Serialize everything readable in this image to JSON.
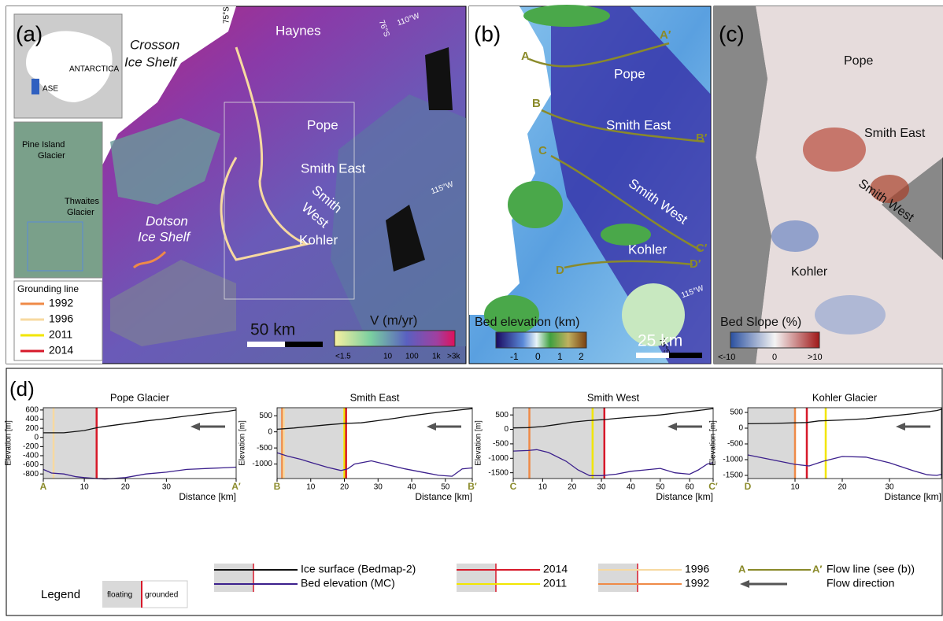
{
  "panel_a": {
    "label": "(a)",
    "texts": [
      "ANTARCTICA",
      "ASE",
      "Pine Island",
      "Glacier",
      "Thwaites",
      "Glacier",
      "Crosson",
      "Ice Shelf",
      "Haynes",
      "Pope",
      "Smith East",
      "Smith",
      "West",
      "Kohler",
      "Dotson",
      "Ice Shelf",
      "75°S",
      "76°S",
      "110°W",
      "115°W",
      "50 km",
      "V (m/yr)"
    ],
    "colorbar_ticks": [
      "<1.5",
      "10",
      "100",
      "1k",
      ">3k"
    ],
    "grounding_legend": {
      "title": "Grounding line",
      "items": [
        {
          "name": "1992",
          "color": "#ef8a47"
        },
        {
          "name": "1996",
          "color": "#f7d9a0"
        },
        {
          "name": "2011",
          "color": "#f2e600"
        },
        {
          "name": "2014",
          "color": "#d7192a"
        }
      ]
    }
  },
  "panel_b": {
    "label": "(b)",
    "flow_labels": [
      "A",
      "A′",
      "B",
      "B′",
      "C",
      "C′",
      "D",
      "D′"
    ],
    "texts": [
      "Pope",
      "Smith East",
      "Smith West",
      "Kohler",
      "115°W",
      "75°S",
      "Bed elevation (km)",
      "25 km"
    ],
    "colorbar_ticks": [
      "-1",
      "0",
      "1",
      "2"
    ]
  },
  "panel_c": {
    "label": "(c)",
    "texts": [
      "Pope",
      "Smith East",
      "Smith West",
      "Kohler",
      "Bed Slope (%)"
    ],
    "colorbar_ticks": [
      "<-10",
      "0",
      ">10"
    ]
  },
  "panel_d": {
    "label": "(d)"
  },
  "chart_data": [
    {
      "type": "line",
      "title": "Pope Glacier",
      "xlabel": "Distance [km]",
      "ylabel": "Elevation [m]",
      "xlim": [
        0,
        47
      ],
      "xticks": [
        {
          "value": 0,
          "label": "A"
        },
        10,
        20,
        30,
        {
          "value": 47,
          "label": "A′"
        }
      ],
      "ylim": [
        -900,
        650
      ],
      "yticks": [
        -800,
        -600,
        -400,
        -200,
        0,
        200,
        400,
        600
      ],
      "floating_extent": [
        0,
        13
      ],
      "floating_color": "#d9d9d9",
      "grounding_lines": [
        {
          "x": 2.5,
          "color": "#f7d9a0"
        },
        {
          "x": 13,
          "color": "#ef8a47"
        },
        {
          "x": 13,
          "color": "#f2e600"
        },
        {
          "x": 13,
          "color": "#d7192a"
        }
      ],
      "series": [
        {
          "color": "#111111",
          "x": [
            0,
            5,
            10,
            13,
            15,
            20,
            25,
            30,
            35,
            40,
            45,
            47
          ],
          "values": [
            100,
            100,
            150,
            210,
            240,
            300,
            360,
            410,
            470,
            520,
            570,
            600
          ]
        },
        {
          "color": "#3b1f8c",
          "x": [
            0,
            2,
            5,
            8,
            10,
            13,
            15,
            20,
            25,
            30,
            35,
            40,
            45,
            47
          ],
          "values": [
            -700,
            -780,
            -800,
            -860,
            -880,
            -900,
            -910,
            -880,
            -800,
            -760,
            -700,
            -680,
            -660,
            -650
          ]
        }
      ]
    },
    {
      "type": "line",
      "title": "Smith East",
      "xlabel": "Distance [km]",
      "ylabel": "Elevation [m]",
      "xlim": [
        0,
        58
      ],
      "xticks": [
        {
          "value": 0,
          "label": "B"
        },
        10,
        20,
        30,
        40,
        50,
        {
          "value": 58,
          "label": "B′"
        }
      ],
      "ylim": [
        -1450,
        750
      ],
      "yticks": [
        -1000,
        -500,
        0,
        500
      ],
      "floating_extent": [
        0,
        20.5
      ],
      "floating_color": "#d9d9d9",
      "grounding_lines": [
        {
          "x": 1.5,
          "color": "#ef8a47"
        },
        {
          "x": 2,
          "color": "#f7d9a0"
        },
        {
          "x": 20,
          "color": "#f2e600"
        },
        {
          "x": 20.5,
          "color": "#d7192a"
        }
      ],
      "series": [
        {
          "color": "#111111",
          "x": [
            0,
            5,
            10,
            15,
            20,
            25,
            30,
            35,
            40,
            45,
            50,
            55,
            58
          ],
          "values": [
            80,
            120,
            170,
            220,
            260,
            280,
            350,
            420,
            500,
            570,
            630,
            690,
            720
          ]
        },
        {
          "color": "#3b1f8c",
          "x": [
            0,
            3,
            7,
            10,
            15,
            19,
            21,
            23,
            28,
            32,
            38,
            43,
            48,
            52,
            55,
            58
          ],
          "values": [
            -650,
            -750,
            -850,
            -950,
            -1100,
            -1200,
            -1150,
            -1000,
            -900,
            -1000,
            -1150,
            -1250,
            -1350,
            -1380,
            -1150,
            -1120
          ]
        }
      ]
    },
    {
      "type": "line",
      "title": "Smith West",
      "xlabel": "Distance [km]",
      "ylabel": "Elevation [m]",
      "xlim": [
        0,
        68
      ],
      "xticks": [
        {
          "value": 0,
          "label": "C"
        },
        10,
        20,
        30,
        40,
        50,
        60,
        {
          "value": 68,
          "label": "C′"
        }
      ],
      "ylim": [
        -1700,
        750
      ],
      "yticks": [
        -1500,
        -1000,
        -500,
        0,
        500
      ],
      "floating_extent": [
        0,
        31
      ],
      "floating_color": "#d9d9d9",
      "grounding_lines": [
        {
          "x": 5.5,
          "color": "#ef8a47"
        },
        {
          "x": 27,
          "color": "#f2e600"
        },
        {
          "x": 31,
          "color": "#d7192a"
        }
      ],
      "series": [
        {
          "color": "#111111",
          "x": [
            0,
            5,
            10,
            15,
            20,
            25,
            31,
            35,
            40,
            45,
            50,
            55,
            60,
            65,
            68
          ],
          "values": [
            50,
            60,
            100,
            170,
            250,
            300,
            340,
            380,
            420,
            460,
            500,
            560,
            620,
            680,
            720
          ]
        },
        {
          "color": "#3b1f8c",
          "x": [
            0,
            5,
            8,
            12,
            18,
            22,
            26,
            30,
            35,
            40,
            45,
            50,
            55,
            60,
            63,
            66,
            68
          ],
          "values": [
            -750,
            -730,
            -700,
            -800,
            -1100,
            -1400,
            -1600,
            -1600,
            -1550,
            -1450,
            -1400,
            -1350,
            -1500,
            -1550,
            -1400,
            -1200,
            -1150
          ]
        }
      ]
    },
    {
      "type": "line",
      "title": "Kohler Glacier",
      "xlabel": "Distance [km]",
      "ylabel": "Elevation [m]",
      "xlim": [
        0,
        41
      ],
      "xticks": [
        {
          "value": 0,
          "label": "D"
        },
        10,
        20,
        30
      ],
      "ylim": [
        -1600,
        650
      ],
      "yticks": [
        -1500,
        -1000,
        -500,
        0,
        500
      ],
      "floating_extent": [
        0,
        10
      ],
      "floating_color": "#d9d9d9",
      "grounding_lines": [
        {
          "x": 10,
          "color": "#ef8a47"
        },
        {
          "x": 12.5,
          "color": "#d7192a"
        },
        {
          "x": 16.5,
          "color": "#f2e600"
        }
      ],
      "series": [
        {
          "color": "#111111",
          "x": [
            0,
            5,
            10,
            12.5,
            15,
            20,
            25,
            30,
            35,
            40,
            41
          ],
          "values": [
            140,
            150,
            170,
            180,
            230,
            260,
            300,
            380,
            460,
            560,
            600
          ]
        },
        {
          "color": "#3b1f8c",
          "x": [
            0,
            5,
            10,
            13,
            16,
            20,
            25,
            30,
            35,
            38,
            40,
            41
          ],
          "values": [
            -850,
            -1000,
            -1150,
            -1200,
            -1050,
            -900,
            -920,
            -1100,
            -1350,
            -1480,
            -1500,
            -1470
          ]
        }
      ]
    }
  ],
  "legend": {
    "title": "Legend",
    "floating": "floating",
    "grounded": "grounded",
    "items": [
      {
        "name": "Ice surface (Bedmap-2)",
        "color": "#111111"
      },
      {
        "name": "Bed elevation (MC)",
        "color": "#3b1f8c"
      },
      {
        "name": "2014",
        "color": "#d7192a"
      },
      {
        "name": "2011",
        "color": "#f2e600"
      },
      {
        "name": "1996",
        "color": "#f7d9a0"
      },
      {
        "name": "1992",
        "color": "#ef8a47"
      }
    ],
    "flow_line": {
      "start": "A",
      "end": "A′",
      "text": "Flow line (see (b))",
      "color": "#8a8a2a"
    },
    "flow_direction": "Flow direction"
  }
}
